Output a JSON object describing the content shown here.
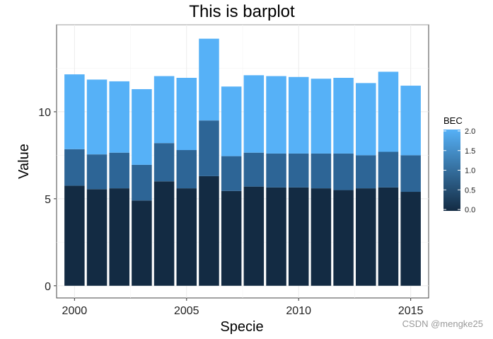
{
  "chart_data": {
    "type": "bar",
    "stacked": true,
    "title": "This is barplot",
    "xlabel": "Specie",
    "ylabel": "Value",
    "x": [
      2000,
      2001,
      2002,
      2003,
      2004,
      2005,
      2006,
      2007,
      2008,
      2009,
      2010,
      2011,
      2012,
      2013,
      2014,
      2015
    ],
    "xticks": [
      2000,
      2005,
      2010,
      2015
    ],
    "xtick_labels": [
      "2000",
      "2005",
      "2010",
      "2015"
    ],
    "xlim": [
      1999.2,
      2015.8
    ],
    "yticks": [
      0,
      5,
      10
    ],
    "ytick_labels": [
      "0",
      "5",
      "10"
    ],
    "ylim": [
      -0.7,
      15.0
    ],
    "grid": true,
    "series": [
      {
        "values": [
          5.75,
          5.55,
          5.6,
          4.9,
          6.0,
          5.6,
          6.3,
          5.45,
          5.7,
          5.65,
          5.65,
          5.6,
          5.5,
          5.6,
          5.65,
          5.4
        ],
        "color": "#132b43"
      },
      {
        "values": [
          2.1,
          2.0,
          2.05,
          2.05,
          2.2,
          2.2,
          3.2,
          2.0,
          1.95,
          1.95,
          1.95,
          2.0,
          2.1,
          1.9,
          2.05,
          2.1
        ],
        "color": "#2d6596"
      },
      {
        "values": [
          4.3,
          4.3,
          4.1,
          4.35,
          3.85,
          4.15,
          4.7,
          4.0,
          4.45,
          4.45,
          4.4,
          4.3,
          4.35,
          4.15,
          4.6,
          4.0
        ],
        "color": "#56b1f7"
      }
    ],
    "legend": {
      "title": "BEC",
      "placement": "right",
      "ticks": [
        "0.0",
        "0.5",
        "1.0",
        "1.5",
        "2.0"
      ],
      "low_color": "#132b43",
      "high_color": "#56b1f7"
    }
  },
  "watermark": "CSDN @mengke25"
}
